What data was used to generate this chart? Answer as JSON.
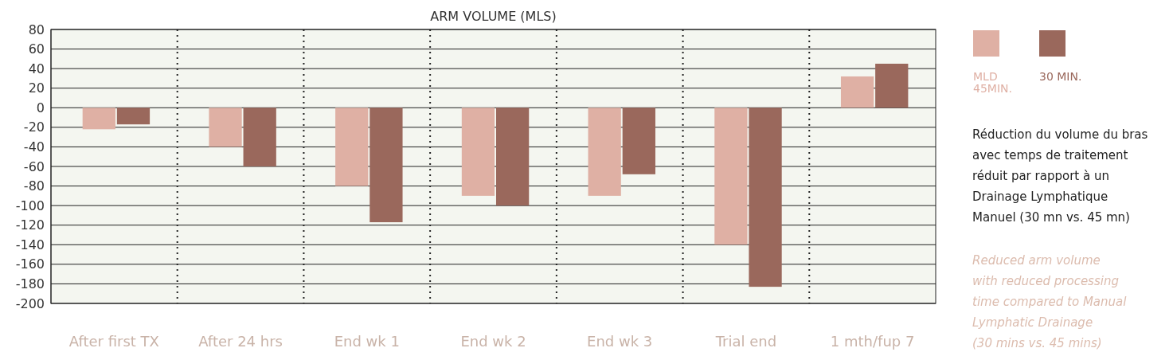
{
  "chart_data": {
    "type": "bar",
    "title": "ARM VOLUME (MLS)",
    "categories": [
      "After first TX",
      "After 24 hrs",
      "End wk 1",
      "End wk 2",
      "End wk 3",
      "Trial end",
      "1 mth/fup 7"
    ],
    "series": [
      {
        "name": "MLD\n45MIN.",
        "color": "#dfb0a4",
        "values": [
          -22,
          -40,
          -80,
          -90,
          -90,
          -140,
          32
        ]
      },
      {
        "name": "30 MIN.",
        "color": "#9a685c",
        "values": [
          -17,
          -60,
          -117,
          -100,
          -68,
          -183,
          45
        ]
      }
    ],
    "ylim": [
      -200,
      80
    ],
    "yticks": [
      -200,
      -180,
      -160,
      -140,
      -120,
      -100,
      -80,
      -60,
      -40,
      -20,
      0,
      20,
      40,
      60,
      80
    ],
    "grid": "y",
    "legend": "top right",
    "annotations": [
      "Réduction du volume du bras\navec temps de traitement\nréduit par rapport à un\nDrainage Lymphatique\nManuel (30 mn vs. 45 mn)",
      "Reduced arm volume\nwith reduced processing\ntime compared to Manual\nLymphatic Drainage\n(30 mins vs. 45 mins)"
    ]
  }
}
